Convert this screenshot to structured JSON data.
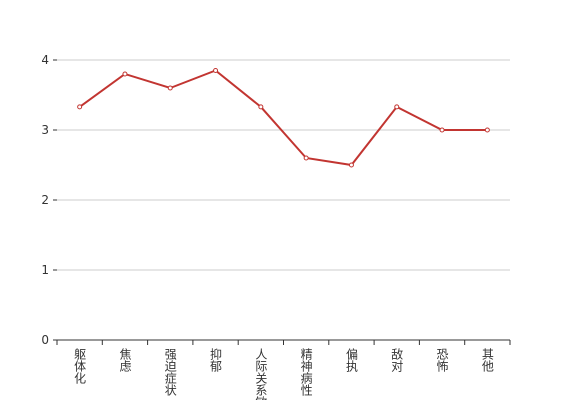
{
  "chart_data": {
    "type": "line",
    "categories": [
      "躯体化",
      "焦虑",
      "强迫症状",
      "抑郁",
      "人际关系敏感",
      "精神病性",
      "偏执",
      "敌对",
      "恐怖",
      "其他"
    ],
    "values": [
      3.33,
      3.8,
      3.6,
      3.85,
      3.33,
      2.6,
      2.5,
      3.33,
      3.0,
      3.0
    ],
    "color": "#c23531",
    "ylim": [
      0,
      4
    ],
    "yticks": [
      0,
      1,
      2,
      3,
      4
    ],
    "grid": true
  }
}
